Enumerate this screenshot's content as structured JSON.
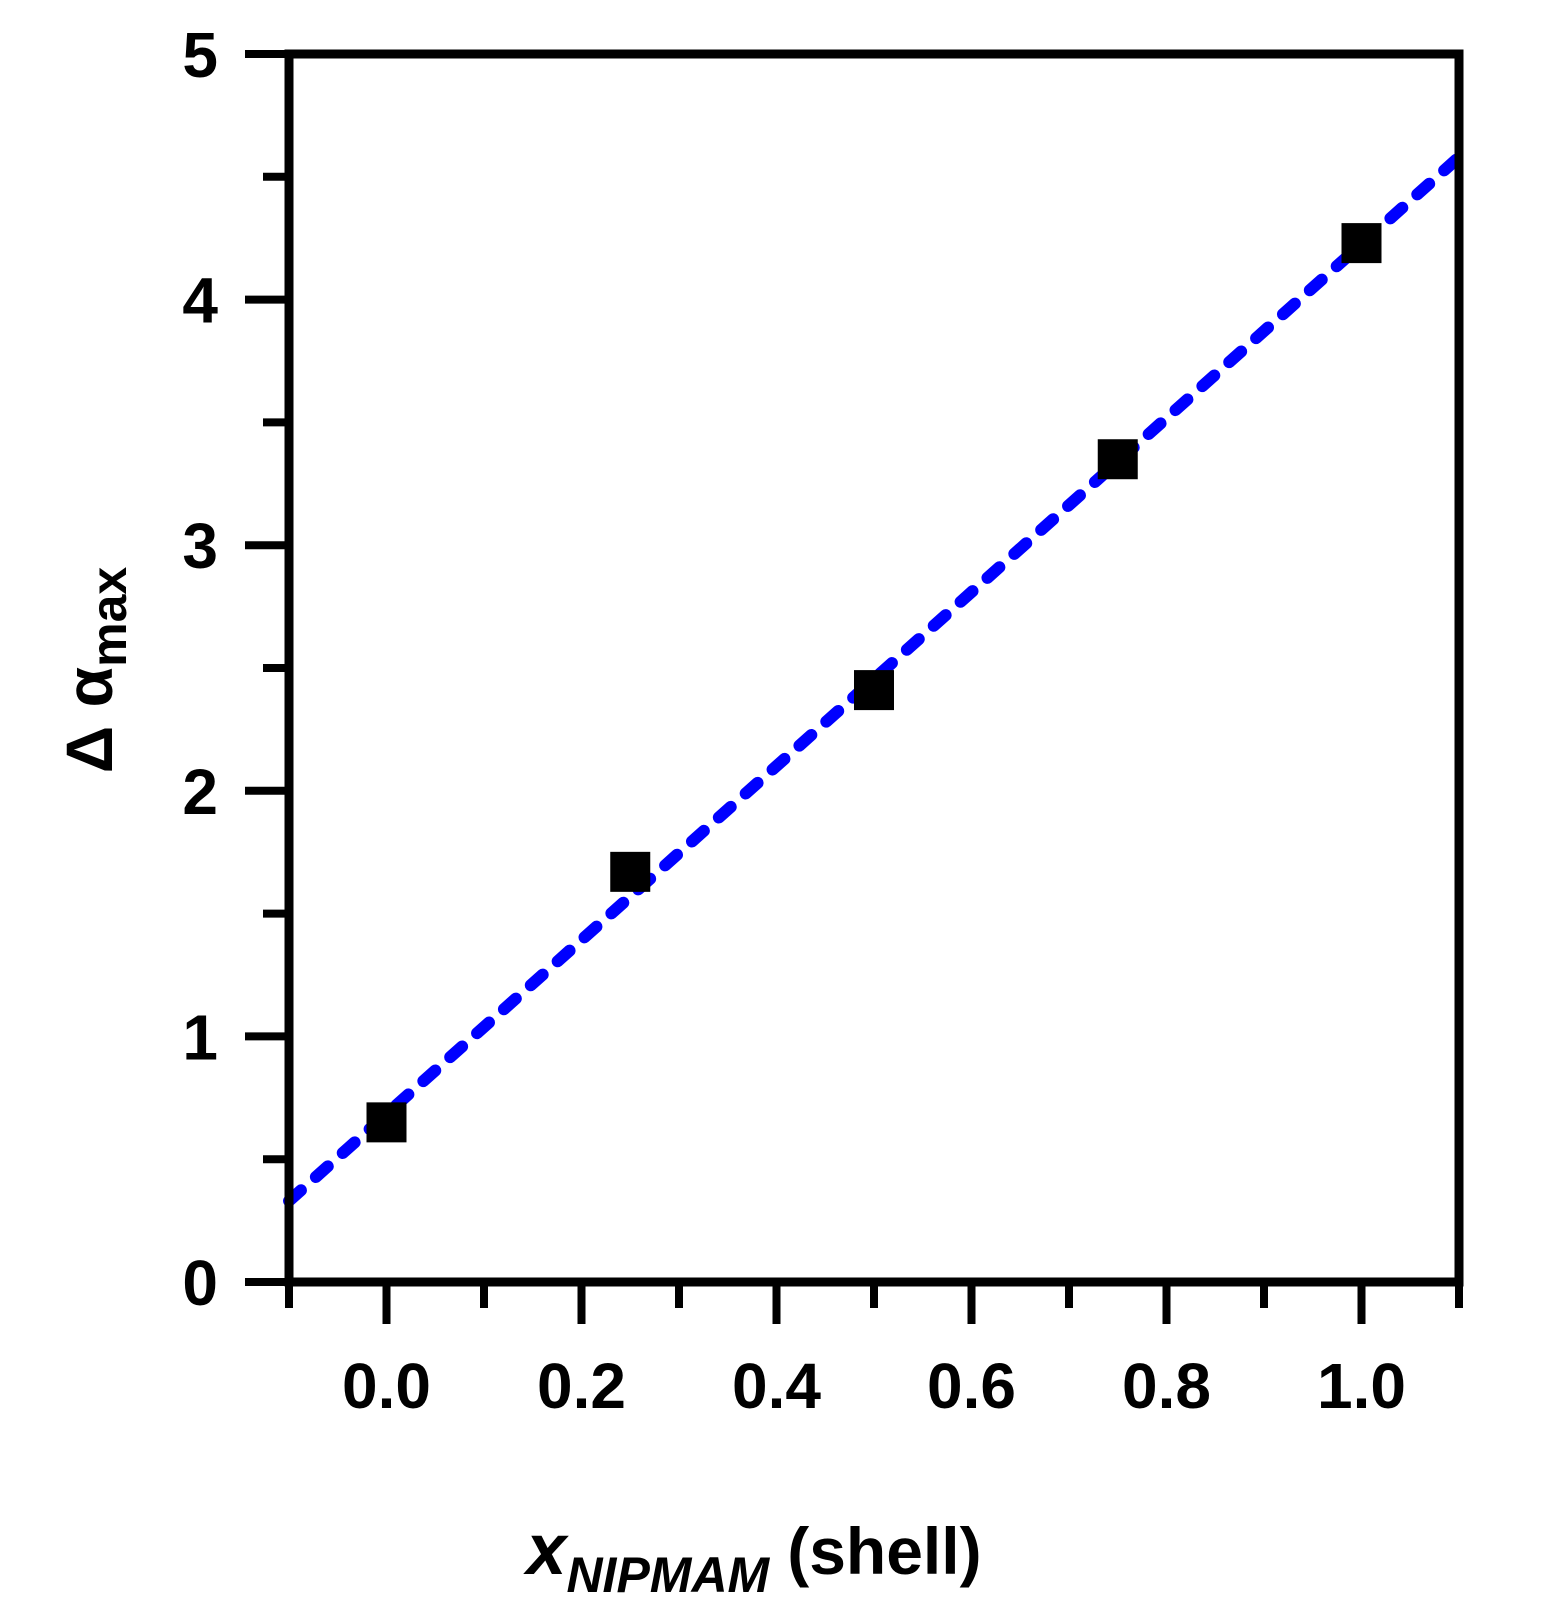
{
  "chart_data": {
    "type": "scatter",
    "xlim": [
      -0.1,
      1.1
    ],
    "ylim": [
      0,
      5
    ],
    "x_ticks": [
      "0.0",
      "0.2",
      "0.4",
      "0.6",
      "0.8",
      "1.0"
    ],
    "x_tick_values": [
      0.0,
      0.2,
      0.4,
      0.6,
      0.8,
      1.0
    ],
    "x_minor_tick_values": [
      -0.1,
      0.1,
      0.3,
      0.5,
      0.7,
      0.9,
      1.1
    ],
    "y_ticks": [
      "0",
      "1",
      "2",
      "3",
      "4",
      "5"
    ],
    "y_tick_values": [
      0,
      1,
      2,
      3,
      4,
      5
    ],
    "y_minor_tick_values": [
      0.5,
      1.5,
      2.5,
      3.5,
      4.5
    ],
    "xlabel": {
      "main": "x",
      "sub": "NIPMAM",
      "suffix": "(shell)"
    },
    "ylabel": {
      "main": "Δ α",
      "sub": "max"
    },
    "grid": false,
    "series": [
      {
        "kind": "points",
        "marker": "square",
        "color": "#000000",
        "x": [
          0.0,
          0.25,
          0.5,
          0.75,
          1.0
        ],
        "y": [
          0.65,
          1.67,
          2.41,
          3.35,
          4.23
        ]
      },
      {
        "kind": "fit-line",
        "style": "dotted",
        "color": "#0000ff",
        "x": [
          -0.1,
          1.1
        ],
        "y": [
          0.33,
          4.58
        ]
      }
    ]
  }
}
